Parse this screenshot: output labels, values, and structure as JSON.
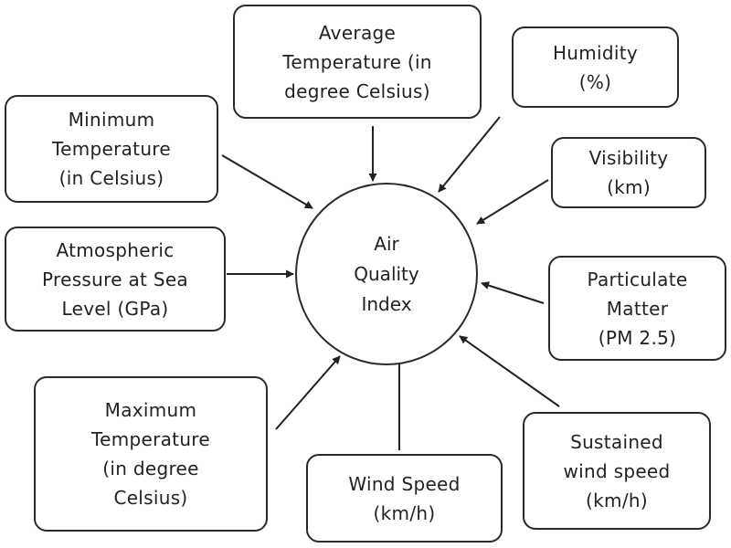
{
  "center": {
    "lines": [
      "Air",
      "Quality",
      "Index"
    ]
  },
  "factors": [
    {
      "id": "average-temperature",
      "lines": [
        "Average",
        "Temperature (in",
        "degree Celsius)"
      ]
    },
    {
      "id": "humidity",
      "lines": [
        "Humidity",
        "(%)"
      ]
    },
    {
      "id": "minimum-temperature",
      "lines": [
        "Minimum",
        "Temperature",
        "(in Celsius)"
      ]
    },
    {
      "id": "visibility",
      "lines": [
        "Visibility",
        "(km)"
      ]
    },
    {
      "id": "atmospheric-pressure",
      "lines": [
        "Atmospheric",
        "Pressure at Sea",
        "Level (GPa)"
      ]
    },
    {
      "id": "particulate-matter",
      "lines": [
        "Particulate",
        "Matter",
        "(PM 2.5)"
      ]
    },
    {
      "id": "maximum-temperature",
      "lines": [
        "Maximum",
        "Temperature",
        "(in degree",
        "Celsius)"
      ]
    },
    {
      "id": "wind-speed",
      "lines": [
        "Wind Speed",
        "(km/h)"
      ]
    },
    {
      "id": "sustained-wind-speed",
      "lines": [
        "Sustained",
        "wind speed",
        "(km/h)"
      ]
    }
  ]
}
